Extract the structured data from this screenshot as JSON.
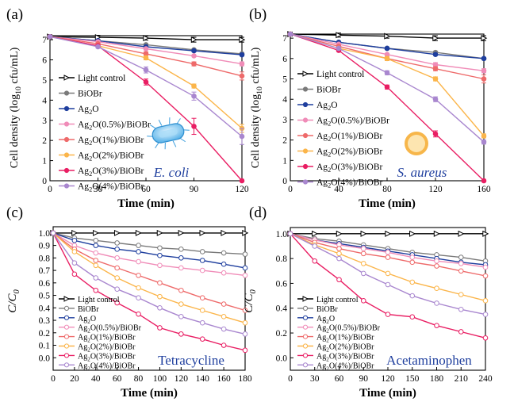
{
  "chart_data": [
    {
      "panel": "(a)",
      "type": "line",
      "ylabel_main": "Cell density (log",
      "ylabel_sub": "10",
      "ylabel_tail": " cfu/mL)",
      "xlabel": "Time (min)",
      "xlim": [
        0,
        120
      ],
      "ylim": [
        0,
        7.2
      ],
      "xticks": [
        0,
        30,
        60,
        90,
        120
      ],
      "yticks": [
        0,
        1,
        2,
        3,
        4,
        5,
        6,
        7
      ],
      "annotation": "E. coli",
      "illustration": "bacterium-rod-icon",
      "x": [
        0,
        30,
        60,
        90,
        120
      ],
      "series": [
        {
          "name": "Light control",
          "values": [
            7.15,
            7.12,
            7.08,
            7.0,
            7.0
          ],
          "err": [
            0.1,
            0.1,
            0.1,
            0.12,
            0.12
          ]
        },
        {
          "name": "BiOBr",
          "values": [
            7.15,
            6.95,
            6.75,
            6.5,
            6.3
          ],
          "err": [
            0.05,
            0.05,
            0.05,
            0.05,
            0.05
          ]
        },
        {
          "name": "Ag2O",
          "values": [
            7.15,
            6.95,
            6.65,
            6.45,
            6.25
          ],
          "err": [
            0.05,
            0.05,
            0.05,
            0.05,
            0.05
          ]
        },
        {
          "name": "Ag2O(0.5%)/BiOBr",
          "values": [
            7.15,
            6.9,
            6.55,
            6.2,
            5.8
          ],
          "err": [
            0.05,
            0.05,
            0.05,
            0.05,
            0.1
          ]
        },
        {
          "name": "Ag2O(1%)/BiOBr",
          "values": [
            7.15,
            6.8,
            6.3,
            5.8,
            5.2
          ],
          "err": [
            0.05,
            0.05,
            0.1,
            0.1,
            0.2
          ]
        },
        {
          "name": "Ag2O(2%)/BiOBr",
          "values": [
            7.15,
            6.7,
            6.1,
            4.7,
            2.6
          ],
          "err": [
            0.05,
            0.05,
            0.1,
            0.1,
            0.2
          ]
        },
        {
          "name": "Ag2O(3%)/BiOBr",
          "values": [
            7.15,
            6.7,
            4.9,
            2.7,
            0.0
          ],
          "err": [
            0.05,
            0.05,
            0.15,
            0.4,
            0.0
          ]
        },
        {
          "name": "Ag2O(4%)/BiOBr",
          "values": [
            7.15,
            6.65,
            5.5,
            4.2,
            2.2
          ],
          "err": [
            0.05,
            0.05,
            0.15,
            0.2,
            0.4
          ]
        }
      ]
    },
    {
      "panel": "(b)",
      "type": "line",
      "ylabel_main": "Cell density (log",
      "ylabel_sub": "10",
      "ylabel_tail": " cfu/mL)",
      "xlabel": "Time (min)",
      "xlim": [
        0,
        160
      ],
      "ylim": [
        0,
        7.2
      ],
      "xticks": [
        0,
        40,
        80,
        120,
        160
      ],
      "yticks": [
        0,
        1,
        2,
        3,
        4,
        5,
        6,
        7
      ],
      "annotation": "S. aureus",
      "illustration": "coccus-sphere-icon",
      "x": [
        0,
        40,
        80,
        120,
        160
      ],
      "series": [
        {
          "name": "Light control",
          "values": [
            7.2,
            7.15,
            7.1,
            7.0,
            7.0
          ],
          "err": [
            0.1,
            0.1,
            0.1,
            0.12,
            0.12
          ]
        },
        {
          "name": "BiOBr",
          "values": [
            7.2,
            6.8,
            6.5,
            6.3,
            6.0
          ],
          "err": [
            0.05,
            0.05,
            0.05,
            0.05,
            0.05
          ]
        },
        {
          "name": "Ag2O",
          "values": [
            7.2,
            6.8,
            6.5,
            6.2,
            6.0
          ],
          "err": [
            0.05,
            0.05,
            0.05,
            0.05,
            0.05
          ]
        },
        {
          "name": "Ag2O(0.5%)/BiOBr",
          "values": [
            7.2,
            6.7,
            6.2,
            5.7,
            5.4
          ],
          "err": [
            0.05,
            0.05,
            0.05,
            0.1,
            0.1
          ]
        },
        {
          "name": "Ag2O(1%)/BiOBr",
          "values": [
            7.2,
            6.6,
            6.0,
            5.5,
            5.0
          ],
          "err": [
            0.05,
            0.05,
            0.1,
            0.1,
            0.2
          ]
        },
        {
          "name": "Ag2O(2%)/BiOBr",
          "values": [
            7.2,
            6.5,
            6.0,
            5.0,
            2.2
          ],
          "err": [
            0.05,
            0.05,
            0.1,
            0.1,
            0.1
          ]
        },
        {
          "name": "Ag2O(3%)/BiOBr",
          "values": [
            7.2,
            6.4,
            4.6,
            2.3,
            0.0
          ],
          "err": [
            0.05,
            0.05,
            0.1,
            0.15,
            0.0
          ]
        },
        {
          "name": "Ag2O(4%)/BiOBr",
          "values": [
            7.2,
            6.5,
            5.3,
            4.0,
            1.9
          ],
          "err": [
            0.05,
            0.05,
            0.1,
            0.12,
            0.1
          ]
        }
      ]
    },
    {
      "panel": "(c)",
      "type": "line",
      "ylabel_main": "C/C",
      "ylabel_sub": "0",
      "ylabel_tail": "",
      "xlabel": "Time (min)",
      "xlim": [
        0,
        180
      ],
      "ylim": [
        -0.1,
        1.05
      ],
      "xticks": [
        0,
        20,
        40,
        60,
        80,
        100,
        120,
        140,
        160,
        180
      ],
      "yticks": [
        0.0,
        0.1,
        0.2,
        0.3,
        0.4,
        0.5,
        0.6,
        0.7,
        0.8,
        0.9,
        1.0
      ],
      "annotation": "Tetracycline",
      "x": [
        0,
        20,
        40,
        60,
        80,
        100,
        120,
        140,
        160,
        180
      ],
      "series": [
        {
          "name": "Light control",
          "values": [
            1.0,
            1.0,
            1.0,
            1.0,
            1.0,
            1.0,
            1.0,
            1.0,
            1.0,
            1.0
          ]
        },
        {
          "name": "BiOBr",
          "values": [
            1.0,
            0.96,
            0.94,
            0.92,
            0.9,
            0.88,
            0.87,
            0.85,
            0.84,
            0.83
          ]
        },
        {
          "name": "Ag2O",
          "values": [
            1.0,
            0.94,
            0.9,
            0.87,
            0.85,
            0.82,
            0.8,
            0.78,
            0.75,
            0.72
          ]
        },
        {
          "name": "Ag2O(0.5%)/BiOBr",
          "values": [
            1.0,
            0.9,
            0.84,
            0.8,
            0.77,
            0.74,
            0.72,
            0.7,
            0.68,
            0.66
          ]
        },
        {
          "name": "Ag2O(1%)/BiOBr",
          "values": [
            1.0,
            0.87,
            0.78,
            0.72,
            0.66,
            0.6,
            0.54,
            0.48,
            0.43,
            0.38
          ]
        },
        {
          "name": "Ag2O(2%)/BiOBr",
          "values": [
            1.0,
            0.85,
            0.74,
            0.64,
            0.56,
            0.49,
            0.43,
            0.38,
            0.33,
            0.28
          ]
        },
        {
          "name": "Ag2O(3%)/BiOBr",
          "values": [
            1.0,
            0.67,
            0.54,
            0.44,
            0.35,
            0.24,
            0.19,
            0.15,
            0.1,
            0.06
          ]
        },
        {
          "name": "Ag2O(4%)/BiOBr",
          "values": [
            1.0,
            0.76,
            0.64,
            0.55,
            0.48,
            0.4,
            0.33,
            0.28,
            0.23,
            0.19
          ]
        }
      ]
    },
    {
      "panel": "(d)",
      "type": "line",
      "ylabel_main": "C/C",
      "ylabel_sub": "0",
      "ylabel_tail": "",
      "xlabel": "Time (min)",
      "xlim": [
        0,
        240
      ],
      "ylim": [
        -0.1,
        1.05
      ],
      "xticks": [
        0,
        30,
        60,
        90,
        120,
        150,
        180,
        210,
        240
      ],
      "yticks": [
        0.0,
        0.2,
        0.4,
        0.6,
        0.8,
        1.0
      ],
      "annotation": "Acetaminophen",
      "x": [
        0,
        30,
        60,
        90,
        120,
        150,
        180,
        210,
        240
      ],
      "series": [
        {
          "name": "Light control",
          "values": [
            1.0,
            1.0,
            1.0,
            1.0,
            1.0,
            1.0,
            1.0,
            1.0,
            1.0
          ]
        },
        {
          "name": "BiOBr",
          "values": [
            1.0,
            0.96,
            0.94,
            0.91,
            0.88,
            0.85,
            0.83,
            0.81,
            0.78
          ]
        },
        {
          "name": "Ag2O",
          "values": [
            1.0,
            0.95,
            0.92,
            0.89,
            0.86,
            0.83,
            0.8,
            0.77,
            0.75
          ]
        },
        {
          "name": "Ag2O(0.5%)/BiOBr",
          "values": [
            1.0,
            0.95,
            0.91,
            0.88,
            0.85,
            0.81,
            0.78,
            0.76,
            0.73
          ]
        },
        {
          "name": "Ag2O(1%)/BiOBr",
          "values": [
            1.0,
            0.93,
            0.88,
            0.84,
            0.81,
            0.77,
            0.74,
            0.7,
            0.66
          ]
        },
        {
          "name": "Ag2O(2%)/BiOBr",
          "values": [
            1.0,
            0.91,
            0.84,
            0.76,
            0.68,
            0.61,
            0.56,
            0.51,
            0.46
          ]
        },
        {
          "name": "Ag2O(3%)/BiOBr",
          "values": [
            1.0,
            0.78,
            0.63,
            0.46,
            0.35,
            0.33,
            0.26,
            0.21,
            0.16
          ]
        },
        {
          "name": "Ag2O(4%)/BiOBr",
          "values": [
            1.0,
            0.9,
            0.8,
            0.68,
            0.59,
            0.5,
            0.44,
            0.39,
            0.35
          ]
        }
      ]
    }
  ],
  "legend_display": [
    {
      "pre": "Light control",
      "sub": "",
      "post": ""
    },
    {
      "pre": "BiOBr",
      "sub": "",
      "post": ""
    },
    {
      "pre": "Ag",
      "sub": "2",
      "post": "O"
    },
    {
      "pre": "Ag",
      "sub": "2",
      "post": "O(0.5%)/BiOBr"
    },
    {
      "pre": "Ag",
      "sub": "2",
      "post": "O(1%)/BiOBr"
    },
    {
      "pre": "Ag",
      "sub": "2",
      "post": "O(2%)/BiOBr"
    },
    {
      "pre": "Ag",
      "sub": "2",
      "post": "O(3%)/BiOBr"
    },
    {
      "pre": "Ag",
      "sub": "2",
      "post": "O(4%)/BiOBr"
    }
  ],
  "series_style": [
    {
      "color": "#000000",
      "marker": "tri-right"
    },
    {
      "color": "#7a7a7a",
      "marker": "circle"
    },
    {
      "color": "#1f3f9e",
      "marker": "circle"
    },
    {
      "color": "#f08cb8",
      "marker": "circle"
    },
    {
      "color": "#ee6a6a",
      "marker": "circle"
    },
    {
      "color": "#fbb54a",
      "marker": "circle"
    },
    {
      "color": "#e91e63",
      "marker": "circle"
    },
    {
      "color": "#a987cf",
      "marker": "circle"
    }
  ],
  "annotation_color": "#1f3f9e"
}
